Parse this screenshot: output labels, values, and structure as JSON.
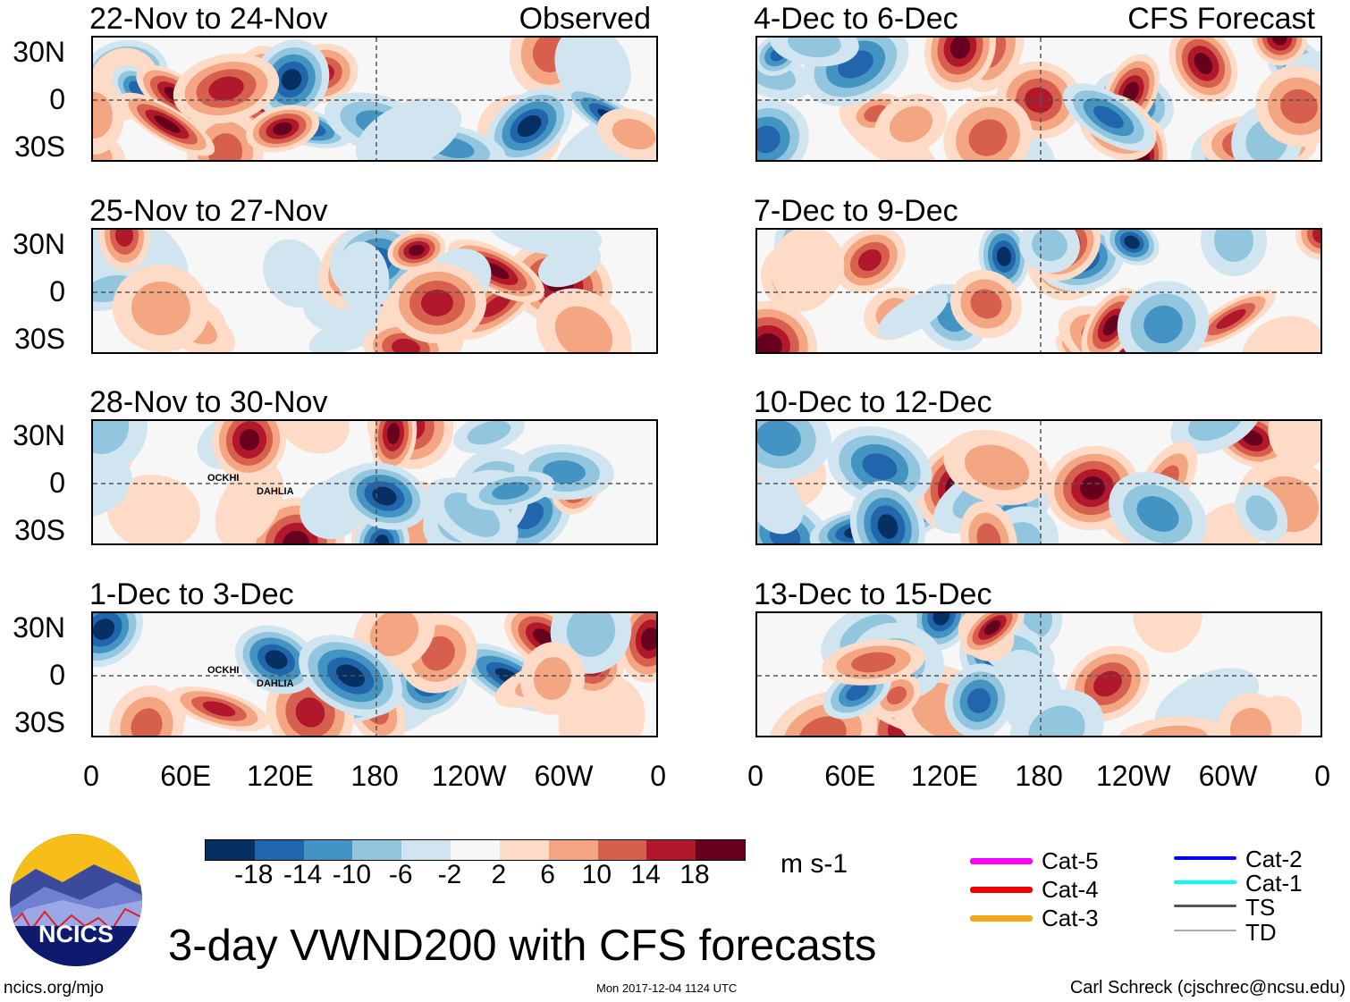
{
  "panels": [
    {
      "title": "22-Nov to 24-Nov",
      "tag": "Observed",
      "storms": []
    },
    {
      "title": "4-Dec to 6-Dec",
      "tag": "CFS Forecast",
      "storms": []
    },
    {
      "title": "25-Nov to 27-Nov",
      "tag": "",
      "storms": []
    },
    {
      "title": "7-Dec to 9-Dec",
      "tag": "",
      "storms": []
    },
    {
      "title": "28-Nov to 30-Nov",
      "tag": "",
      "storms": [
        "OCKHI",
        "DAHLIA"
      ]
    },
    {
      "title": "10-Dec to 12-Dec",
      "tag": "",
      "storms": []
    },
    {
      "title": "1-Dec to 3-Dec",
      "tag": "",
      "storms": [
        "OCKHI",
        "DAHLIA"
      ]
    },
    {
      "title": "13-Dec to 15-Dec",
      "tag": "",
      "storms": []
    }
  ],
  "lat_labels": [
    "30N",
    "0",
    "30S"
  ],
  "lon_labels": [
    "0",
    "60E",
    "120E",
    "180",
    "120W",
    "60W",
    "0"
  ],
  "colorbar": {
    "colors": [
      "#053061",
      "#2166ac",
      "#4393c3",
      "#92c5de",
      "#d1e5f0",
      "#f7f7f7",
      "#fddbc7",
      "#f4a582",
      "#d6604d",
      "#b2182b",
      "#67001f"
    ],
    "labels": [
      "-18",
      "-14",
      "-10",
      "-6",
      "-2",
      "2",
      "6",
      "10",
      "14",
      "18"
    ],
    "units": "m s-1"
  },
  "legend": [
    {
      "label": "Cat-5",
      "color": "#ff00ff"
    },
    {
      "label": "Cat-4",
      "color": "#ee0000"
    },
    {
      "label": "Cat-3",
      "color": "#f0a818"
    },
    {
      "label": "Cat-2",
      "color": "#0000ee"
    },
    {
      "label": "Cat-1",
      "color": "#00ffff"
    },
    {
      "label": "TS",
      "color": "#555555"
    },
    {
      "label": "TD",
      "color": "#aaaaaa"
    }
  ],
  "logo_text": "NCICS",
  "title": "3-day VWND200 with CFS forecasts",
  "footer": {
    "left": "ncics.org/mjo",
    "center": "Mon 2017-12-04 1124 UTC",
    "right": "Carl Schreck (cjschrec@ncsu.edu)"
  }
}
